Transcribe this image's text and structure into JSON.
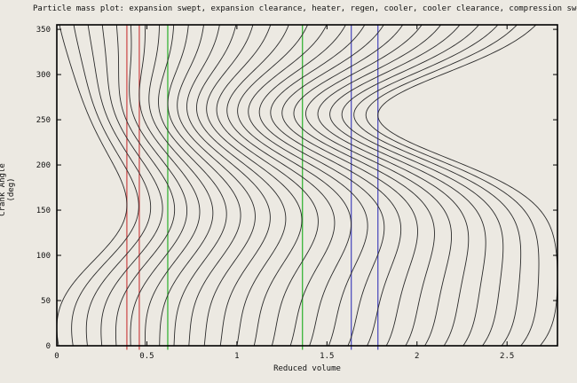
{
  "chart_data": {
    "type": "line",
    "title": "Particle mass plot: expansion swept, expansion clearance, heater, regen, cooler, cooler clearance, compression swept",
    "xlabel": "Reduced volume",
    "ylabel": "Crank Angle (deg)",
    "xlim": [
      0,
      2.78
    ],
    "ylim": [
      0,
      355
    ],
    "x_ticks": [
      0,
      0.5,
      1,
      1.5,
      2,
      2.5
    ],
    "x_tick_labels": [
      "0",
      "0.5",
      "1",
      "1.5",
      "2",
      "2.5"
    ],
    "y_ticks": [
      0,
      50,
      100,
      150,
      200,
      250,
      300,
      350
    ],
    "y_tick_labels": [
      "0",
      "50",
      "100",
      "150",
      "200",
      "250",
      "300",
      "350"
    ],
    "grid": false,
    "legend": null,
    "regions": [
      "expansion swept",
      "expansion clearance",
      "heater",
      "regen",
      "cooler",
      "cooler clearance",
      "compression swept"
    ],
    "region_edges": [
      0,
      0.389,
      0.458,
      0.616,
      1.364,
      1.635,
      1.783,
      2.78
    ],
    "boundaries": [
      {
        "x": 0.389,
        "color": "#cc4444",
        "label": "expansion swept / expansion clearance"
      },
      {
        "x": 0.458,
        "color": "#cc4444",
        "label": "expansion clearance / heater"
      },
      {
        "x": 0.616,
        "color": "#2ab02a",
        "label": "heater / regen"
      },
      {
        "x": 1.364,
        "color": "#2ab02a",
        "label": "regen / cooler"
      },
      {
        "x": 1.635,
        "color": "#4444bb",
        "label": "cooler / cooler clearance"
      },
      {
        "x": 1.783,
        "color": "#4444bb",
        "label": "cooler clearance / compression swept"
      }
    ],
    "particle_model": {
      "curve_count": 29,
      "color": "#2b2b2b",
      "theta_step_deg": 2.5,
      "expansion_piston": {
        "amp": 0.1945,
        "min_phase_deg": 20,
        "skew_deg": 25.8
      },
      "compression_piston": {
        "base": 1.783,
        "amp": 0.4985,
        "min_phase_deg": 255,
        "skew_deg": 40.1
      },
      "temperature": {
        "expansion_side": 0.75,
        "compression_side": 1.0
      }
    }
  },
  "colors": {
    "background": "#ece9e2",
    "frame": "#000000",
    "text": "#111111"
  }
}
